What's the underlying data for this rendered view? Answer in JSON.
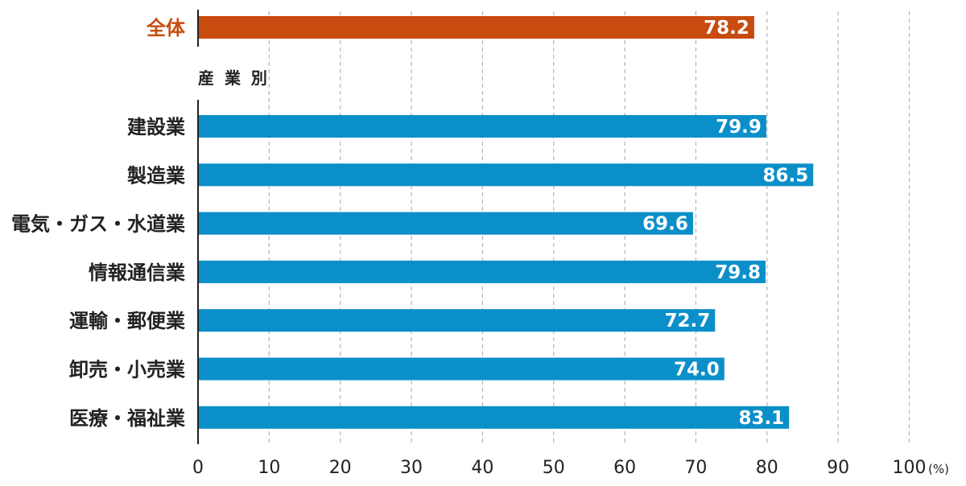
{
  "chart_data": {
    "type": "bar",
    "orientation": "horizontal",
    "total": {
      "category": "全体",
      "value": 78.2,
      "color": "#c84b0f"
    },
    "section_label": "産 業 別",
    "categories": [
      "建設業",
      "製造業",
      "電気・ガス・水道業",
      "情報通信業",
      "運輸・郵便業",
      "卸売・小売業",
      "医療・福祉業"
    ],
    "values": [
      79.9,
      86.5,
      69.6,
      79.8,
      72.7,
      74.0,
      83.1
    ],
    "value_labels": [
      "79.9",
      "86.5",
      "69.6",
      "79.8",
      "72.7",
      "74.0",
      "83.1"
    ],
    "total_value_label": "78.2",
    "series_color": "#0a8fc9",
    "xlim": [
      0,
      100
    ],
    "x_ticks": [
      0,
      10,
      20,
      30,
      40,
      50,
      60,
      70,
      80,
      90,
      100
    ],
    "x_tick_labels": [
      "0",
      "10",
      "20",
      "30",
      "40",
      "50",
      "60",
      "70",
      "80",
      "90",
      "100"
    ],
    "x_unit": "(%)",
    "grid": true
  }
}
